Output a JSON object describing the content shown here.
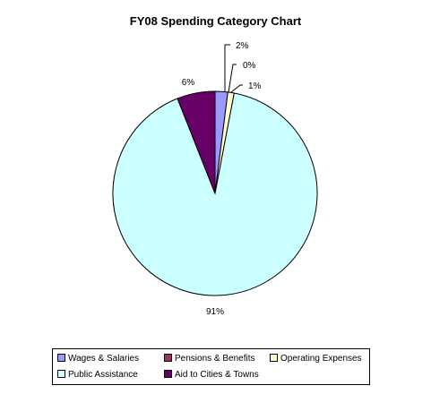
{
  "chart_data": {
    "type": "pie",
    "title": "FY08 Spending Category Chart",
    "slices": [
      {
        "name": "Wages & Salaries",
        "value": 2,
        "label": "2%",
        "color": "#9999FF"
      },
      {
        "name": "Pensions & Benefits",
        "value": 0,
        "label": "0%",
        "color": "#993366"
      },
      {
        "name": "Operating Expenses",
        "value": 1,
        "label": "1%",
        "color": "#FFFFCC"
      },
      {
        "name": "Public Assistance",
        "value": 91,
        "label": "91%",
        "color": "#CCFFFF"
      },
      {
        "name": "Aid to Cities & Towns",
        "value": 6,
        "label": "6%",
        "color": "#660066"
      }
    ],
    "legend_position": "bottom"
  }
}
